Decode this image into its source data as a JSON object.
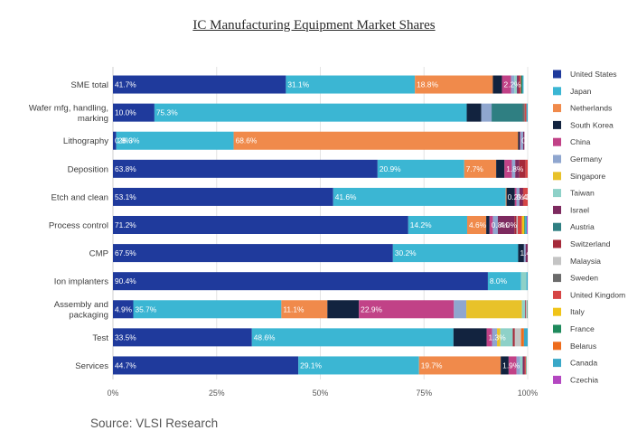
{
  "title": "IC Manufacturing Equipment Market Shares",
  "source": "Source: VLSI Research",
  "chart_data": {
    "type": "bar",
    "orientation": "horizontal",
    "stacked": "percent",
    "title": "IC Manufacturing Equipment Market Shares",
    "xlim": [
      0,
      100
    ],
    "x_ticks": [
      "0%",
      "25%",
      "50%",
      "75%",
      "100%"
    ],
    "grid": "vertical lines",
    "legend_position": "right",
    "categories": [
      [
        "SME total"
      ],
      [
        "Wafer mfg, handling,",
        "marking"
      ],
      [
        "Lithography"
      ],
      [
        "Deposition"
      ],
      [
        "Etch and clean"
      ],
      [
        "Process control"
      ],
      [
        "CMP"
      ],
      [
        "Ion implanters"
      ],
      [
        "Assembly and",
        "packaging"
      ],
      [
        "Test"
      ],
      [
        "Services"
      ]
    ],
    "series": [
      {
        "name": "United States",
        "color": "#1f3a9c",
        "values": [
          41.7,
          10.0,
          0.8,
          63.8,
          53.1,
          71.2,
          67.5,
          90.4,
          4.9,
          33.5,
          44.7
        ]
      },
      {
        "name": "Japan",
        "color": "#3bb6d3",
        "values": [
          31.1,
          75.3,
          28.3,
          20.9,
          41.6,
          14.2,
          30.2,
          8.0,
          35.7,
          48.6,
          29.1
        ]
      },
      {
        "name": "Netherlands",
        "color": "#f08a4b",
        "values": [
          18.8,
          0,
          68.6,
          7.7,
          0.2,
          4.6,
          0,
          0,
          11.1,
          0,
          19.7
        ]
      },
      {
        "name": "South Korea",
        "color": "#12233f",
        "values": [
          2.2,
          3.5,
          0.4,
          2.0,
          2.0,
          0.8,
          1.4,
          0,
          7.6,
          8.0,
          1.9
        ]
      },
      {
        "name": "China",
        "color": "#c14287",
        "values": [
          2.2,
          0,
          0.2,
          1.8,
          0.4,
          0.8,
          0,
          0,
          22.9,
          1.3,
          1.9
        ]
      },
      {
        "name": "Germany",
        "color": "#8fa6cf",
        "values": [
          0.8,
          2.5,
          0.6,
          0.8,
          0.7,
          1.2,
          0.4,
          0,
          3.0,
          1.2,
          0.9
        ]
      },
      {
        "name": "Singapore",
        "color": "#e8c22a",
        "values": [
          0,
          0,
          0,
          0,
          0,
          0,
          0,
          0,
          13.4,
          0.8,
          0
        ]
      },
      {
        "name": "Taiwan",
        "color": "#8ed1c8",
        "values": [
          0.6,
          0,
          0,
          0,
          0,
          0,
          0,
          1.3,
          0.8,
          3.0,
          0.6
        ]
      },
      {
        "name": "Israel",
        "color": "#7d2a5f",
        "values": [
          0.4,
          0,
          0.3,
          1.0,
          0.8,
          4.0,
          0.5,
          0,
          0,
          0,
          0.4
        ]
      },
      {
        "name": "Austria",
        "color": "#2f7f82",
        "values": [
          0,
          7.5,
          0,
          0,
          0,
          0,
          0,
          0,
          0,
          0,
          0
        ]
      },
      {
        "name": "Switzerland",
        "color": "#a52a3a",
        "values": [
          0.3,
          0,
          0,
          1.5,
          0.2,
          0.5,
          0,
          0,
          0.2,
          0.5,
          0.2
        ]
      },
      {
        "name": "Malaysia",
        "color": "#c4c4c4",
        "values": [
          0,
          0,
          0,
          0,
          0,
          0.3,
          0,
          0,
          0.3,
          1.5,
          0
        ]
      },
      {
        "name": "Sweden",
        "color": "#6b6b6b",
        "values": [
          0,
          0.5,
          0,
          0,
          0,
          0,
          0,
          0,
          0,
          0,
          0
        ]
      },
      {
        "name": "United Kingdom",
        "color": "#d64545",
        "values": [
          0.3,
          0.4,
          0,
          0.5,
          1.0,
          1.0,
          0,
          0,
          0,
          0,
          0.2
        ]
      },
      {
        "name": "Italy",
        "color": "#f0c419",
        "values": [
          0,
          0,
          0,
          0,
          0,
          0.6,
          0,
          0,
          0,
          0,
          0
        ]
      },
      {
        "name": "France",
        "color": "#1f8a5c",
        "values": [
          0.3,
          0,
          0,
          0,
          0,
          0.2,
          0,
          0,
          0.3,
          0,
          0.1
        ]
      },
      {
        "name": "Belarus",
        "color": "#ee6c1c",
        "values": [
          0,
          0,
          0,
          0,
          0,
          0,
          0,
          0,
          0,
          0.7,
          0
        ]
      },
      {
        "name": "Canada",
        "color": "#3aa8c8",
        "values": [
          0.3,
          0.3,
          0,
          0,
          0,
          0.4,
          0,
          0.3,
          0,
          0.9,
          0
        ]
      },
      {
        "name": "Czechia",
        "color": "#b447c1",
        "values": [
          0,
          0,
          0,
          0,
          0,
          0.2,
          0,
          0,
          0,
          0,
          0
        ]
      }
    ],
    "data_labels": [
      [
        [
          "United States",
          "41.7%"
        ],
        [
          "Japan",
          "31.1%"
        ],
        [
          "Netherlands",
          "18.8%"
        ],
        [
          "China",
          "2.2%"
        ]
      ],
      [
        [
          "United States",
          "10.0%"
        ],
        [
          "Japan",
          "75.3%"
        ]
      ],
      [
        [
          "United States",
          "0.8%"
        ],
        [
          "Japan",
          "28.3%"
        ],
        [
          "Netherlands",
          "68.6%"
        ],
        [
          "China",
          "0.2%"
        ]
      ],
      [
        [
          "United States",
          "63.8%"
        ],
        [
          "Japan",
          "20.9%"
        ],
        [
          "Netherlands",
          "7.7%"
        ],
        [
          "China",
          "1.8%"
        ]
      ],
      [
        [
          "United States",
          "53.1%"
        ],
        [
          "Japan",
          "41.6%"
        ],
        [
          "Netherlands",
          "0.2%"
        ],
        [
          "China",
          "0.4%"
        ],
        [
          "United Kingdom",
          "1.0%"
        ]
      ],
      [
        [
          "United States",
          "71.2%"
        ],
        [
          "Japan",
          "14.2%"
        ],
        [
          "Netherlands",
          "4.6%"
        ],
        [
          "China",
          "0.8%"
        ],
        [
          "Israel",
          "4.0%"
        ]
      ],
      [
        [
          "United States",
          "67.5%"
        ],
        [
          "Japan",
          "30.2%"
        ],
        [
          "South Korea",
          "1.4%"
        ]
      ],
      [
        [
          "United States",
          "90.4%"
        ],
        [
          "Japan",
          "8.0%"
        ]
      ],
      [
        [
          "United States",
          "4.9%"
        ],
        [
          "Japan",
          "35.7%"
        ],
        [
          "Netherlands",
          "11.1%"
        ],
        [
          "China",
          "22.9%"
        ]
      ],
      [
        [
          "United States",
          "33.5%"
        ],
        [
          "Japan",
          "48.6%"
        ],
        [
          "China",
          "1.3%"
        ]
      ],
      [
        [
          "United States",
          "44.7%"
        ],
        [
          "Japan",
          "29.1%"
        ],
        [
          "Netherlands",
          "19.7%"
        ],
        [
          "South Korea",
          "1.9%"
        ]
      ]
    ],
    "legend": [
      "United States",
      "Japan",
      "Netherlands",
      "South Korea",
      "China",
      "Germany",
      "Singapore",
      "Taiwan",
      "Israel",
      "Austria",
      "Switzerland",
      "Malaysia",
      "Sweden",
      "United Kingdom",
      "Italy",
      "France",
      "Belarus",
      "Canada",
      "Czechia"
    ]
  }
}
